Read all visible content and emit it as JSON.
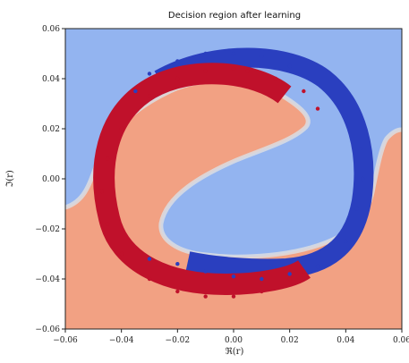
{
  "chart_data": {
    "type": "scatter",
    "title": "Decision region after learning",
    "xlabel": "ℜ(r)",
    "ylabel": "ℑ(r)",
    "xlim": [
      -0.06,
      0.06
    ],
    "ylim": [
      -0.06,
      0.06
    ],
    "xticks": [
      "−0.06",
      "−0.04",
      "−0.02",
      "0.00",
      "0.02",
      "0.04",
      "0.06"
    ],
    "yticks": [
      "0.06",
      "0.04",
      "0.02",
      "0.00",
      "−0.02",
      "−0.04",
      "−0.06"
    ],
    "grid": false,
    "background_regions": [
      {
        "color": "#f2a183",
        "description": "lower-left decision region"
      },
      {
        "color": "#93b4f0",
        "description": "upper-right decision region"
      }
    ],
    "series": [
      {
        "color": "#c0112b",
        "x": [
          0.0,
          -0.01,
          -0.02,
          -0.03,
          -0.04,
          -0.045,
          -0.047,
          -0.045,
          -0.04,
          -0.03,
          -0.02,
          -0.01,
          0.0,
          0.01,
          0.02,
          0.025,
          0.03,
          0.025,
          0.015,
          0.005
        ],
        "y": [
          0.044,
          0.043,
          0.04,
          0.033,
          0.02,
          0.008,
          -0.005,
          -0.018,
          -0.03,
          -0.04,
          -0.045,
          -0.047,
          -0.047,
          -0.045,
          -0.04,
          -0.037,
          0.028,
          0.035,
          0.04,
          0.043
        ]
      },
      {
        "color": "#2a3fbf",
        "x": [
          0.0,
          0.01,
          0.02,
          0.03,
          0.04,
          0.045,
          0.046,
          0.044,
          0.04,
          0.03,
          0.02,
          0.01,
          0.0,
          -0.01,
          -0.02,
          -0.03,
          -0.01,
          -0.02,
          -0.03,
          -0.035
        ],
        "y": [
          0.05,
          0.049,
          0.045,
          0.038,
          0.025,
          0.012,
          0.0,
          -0.012,
          -0.025,
          -0.035,
          -0.038,
          -0.04,
          -0.039,
          -0.037,
          -0.034,
          -0.032,
          0.05,
          0.047,
          0.042,
          0.035
        ]
      }
    ]
  }
}
